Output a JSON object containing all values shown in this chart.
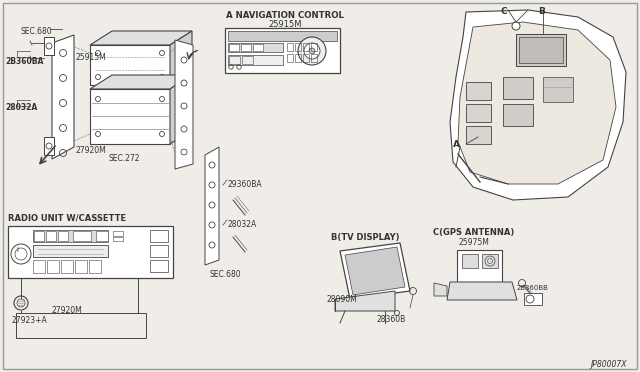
{
  "background_color": "#f0ede8",
  "line_color": "#444444",
  "text_color": "#333333",
  "diagram_id": "JP80007X",
  "labels": {
    "nav_control_title": "A NAVIGATION CONTROL",
    "nav_control_part": "25915M",
    "radio_title": "RADIO UNIT W/CASSETTE",
    "tv_display_title": "B(TV DISPLAY)",
    "gps_antenna_title": "C(GPS ANTENNA)",
    "gps_part": "25975M",
    "sec680_1": "SEC.680",
    "part_25915m": "25915M",
    "part_2b360ba": "2B360BA",
    "part_28032a_1": "28032A",
    "part_27920m_1": "27920M",
    "part_sec272": "SEC.272",
    "part_29360ba": "29360BA",
    "part_28032a_2": "28032A",
    "part_sec680_2": "SEC.680",
    "part_27923a": "27923+A",
    "part_27920m_2": "27920M",
    "part_28090m": "28090M",
    "part_28360b": "28360B",
    "part_28360bb": "28360BB",
    "label_a": "A",
    "label_b": "B",
    "label_c": "C"
  },
  "figsize": [
    6.4,
    3.72
  ],
  "dpi": 100
}
